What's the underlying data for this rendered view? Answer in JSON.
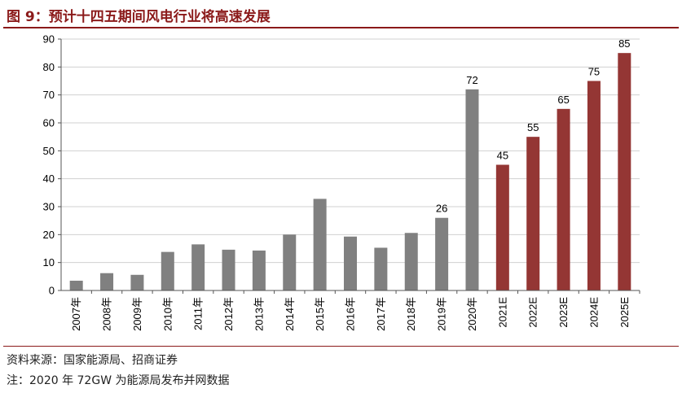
{
  "header": {
    "title": "图 9：预计十四五期间风电行业将高速发展"
  },
  "footer": {
    "source": "资料来源：国家能源局、招商证券",
    "note": "注：2020 年 72GW 为能源局发布并网数据"
  },
  "colors": {
    "actual": "#808080",
    "forecast": "#943634",
    "title": "#8b1a1a"
  },
  "chart_data": {
    "type": "bar",
    "title": "",
    "xlabel": "",
    "ylabel": "",
    "ylim": [
      0,
      90
    ],
    "yticks": [
      0,
      10,
      20,
      30,
      40,
      50,
      60,
      70,
      80,
      90
    ],
    "grid": true,
    "categories": [
      "2007年",
      "2008年",
      "2009年",
      "2010年",
      "2011年",
      "2012年",
      "2013年",
      "2014年",
      "2015年",
      "2016年",
      "2017年",
      "2018年",
      "2019年",
      "2020年",
      "2021E",
      "2022E",
      "2023E",
      "2024E",
      "2025E"
    ],
    "values": [
      3.5,
      6.2,
      5.6,
      13.8,
      16.5,
      14.6,
      14.3,
      20.0,
      32.8,
      19.3,
      15.3,
      20.6,
      26,
      72,
      45,
      55,
      65,
      75,
      85
    ],
    "bar_types": [
      "actual",
      "actual",
      "actual",
      "actual",
      "actual",
      "actual",
      "actual",
      "actual",
      "actual",
      "actual",
      "actual",
      "actual",
      "actual",
      "actual",
      "forecast",
      "forecast",
      "forecast",
      "forecast",
      "forecast"
    ],
    "data_labels": [
      "",
      "",
      "",
      "",
      "",
      "",
      "",
      "",
      "",
      "",
      "",
      "",
      "26",
      "72",
      "45",
      "55",
      "65",
      "75",
      "85"
    ]
  }
}
